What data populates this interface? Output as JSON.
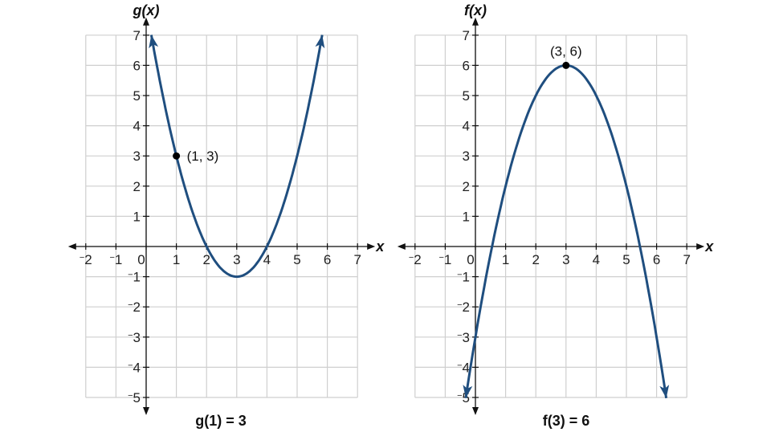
{
  "chart_data": [
    {
      "type": "line",
      "ylabel": "g(x)",
      "xlabel": "x",
      "caption": "g(1) = 3",
      "xlim": [
        -2,
        7
      ],
      "ylim": [
        -5,
        7
      ],
      "x_ticks": [
        -2,
        -1,
        0,
        1,
        2,
        3,
        4,
        5,
        6,
        7
      ],
      "y_ticks": [
        -5,
        -4,
        -3,
        -2,
        -1,
        1,
        2,
        3,
        4,
        5,
        6,
        7
      ],
      "grid": true,
      "series": [
        {
          "formula": "(x-3)^2 - 1",
          "vertex": [
            3,
            -1
          ],
          "x_range": [
            0.17,
            5.83
          ],
          "color": "#1f4e7f"
        }
      ],
      "annotations": [
        {
          "point": [
            1,
            3
          ],
          "label": "(1, 3)"
        }
      ]
    },
    {
      "type": "line",
      "ylabel": "f(x)",
      "xlabel": "x",
      "caption": "f(3) = 6",
      "xlim": [
        -2,
        7
      ],
      "ylim": [
        -5,
        7
      ],
      "x_ticks": [
        -2,
        -1,
        0,
        1,
        2,
        3,
        4,
        5,
        6,
        7
      ],
      "y_ticks": [
        -5,
        -4,
        -3,
        -2,
        -1,
        1,
        2,
        3,
        4,
        5,
        6,
        7
      ],
      "grid": true,
      "series": [
        {
          "formula": "-(x-3)^2 + 6",
          "vertex": [
            3,
            6
          ],
          "x_range": [
            -0.32,
            6.32
          ],
          "color": "#1f4e7f"
        }
      ],
      "annotations": [
        {
          "point": [
            3,
            6
          ],
          "label": "(3, 6)"
        }
      ]
    }
  ]
}
